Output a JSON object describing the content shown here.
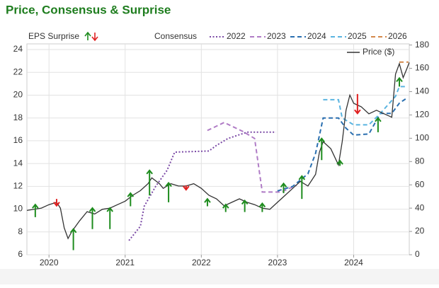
{
  "chart_data": {
    "type": "line",
    "title": "Price, Consensus & Surprise",
    "surprise_label": "EPS Surprise",
    "consensus_label": "Consensus",
    "xlim": [
      2019.71,
      2024.73
    ],
    "xticks": [
      2020,
      2021,
      2022,
      2023,
      2024
    ],
    "ylim": [
      6,
      24.5
    ],
    "yticks": [
      6,
      8,
      10,
      12,
      14,
      16,
      18,
      20,
      22,
      24
    ],
    "y2lim": [
      0,
      181
    ],
    "y2ticks": [
      0,
      20,
      40,
      60,
      80,
      100,
      120,
      140,
      160,
      180
    ],
    "grid": true,
    "series": [
      {
        "name": "2022",
        "color": "#7b4aa6",
        "line_style": "dotted",
        "x": [
          2021.05,
          2021.2,
          2021.25,
          2021.4,
          2021.55,
          2021.65,
          2022.1,
          2022.2,
          2022.35,
          2022.6,
          2022.98
        ],
        "values": [
          7.25,
          8.5,
          10.25,
          12,
          13.4,
          15,
          15.1,
          15.6,
          16.2,
          16.75,
          16.75
        ]
      },
      {
        "name": "2023",
        "color": "#b07cc6",
        "line_style": "dashed",
        "x": [
          2022.08,
          2022.3,
          2022.55,
          2022.7,
          2022.8,
          2023.05,
          2023.25
        ],
        "values": [
          16.9,
          17.6,
          16.8,
          16.2,
          11.5,
          11.5,
          12.1
        ]
      },
      {
        "name": "2024",
        "color": "#2a6fb0",
        "line_style": "dashed",
        "x": [
          2023.0,
          2023.2,
          2023.4,
          2023.5,
          2023.6,
          2023.8,
          2023.9,
          2024.0,
          2024.2,
          2024.35,
          2024.5,
          2024.6,
          2024.7
        ],
        "values": [
          11.6,
          12,
          13.1,
          14.9,
          18,
          18,
          17.1,
          16.5,
          16.6,
          18.4,
          18.4,
          19.3,
          19.75
        ]
      },
      {
        "name": "2025",
        "color": "#5ab4e0",
        "line_style": "dashed",
        "x": [
          2023.6,
          2023.8,
          2023.85,
          2024.0,
          2024.2,
          2024.35,
          2024.55,
          2024.6,
          2024.7
        ],
        "values": [
          19.6,
          19.6,
          18,
          17.4,
          17.4,
          18.4,
          19.9,
          20.75,
          20.75
        ]
      },
      {
        "name": "2026",
        "color": "#d4884a",
        "line_style": "dashed",
        "x": [
          2024.6,
          2024.72
        ],
        "values": [
          22.9,
          22.9
        ]
      },
      {
        "name": "Price ($)",
        "color": "#333333",
        "line_style": "solid",
        "axis": "y2",
        "x": [
          2019.71,
          2019.9,
          2020.0,
          2020.1,
          2020.15,
          2020.2,
          2020.25,
          2020.3,
          2020.4,
          2020.5,
          2020.6,
          2020.7,
          2020.8,
          2020.9,
          2021.0,
          2021.1,
          2021.2,
          2021.3,
          2021.35,
          2021.45,
          2021.5,
          2021.6,
          2021.7,
          2021.8,
          2021.9,
          2022.0,
          2022.1,
          2022.2,
          2022.3,
          2022.4,
          2022.5,
          2022.6,
          2022.7,
          2022.8,
          2022.9,
          2023.0,
          2023.1,
          2023.2,
          2023.3,
          2023.4,
          2023.5,
          2023.55,
          2023.6,
          2023.7,
          2023.8,
          2023.85,
          2023.9,
          2023.95,
          2024.0,
          2024.1,
          2024.2,
          2024.3,
          2024.4,
          2024.5,
          2024.55,
          2024.6,
          2024.65,
          2024.7,
          2024.73
        ],
        "values": [
          38,
          40,
          43,
          45,
          40,
          23,
          14,
          20,
          29,
          37,
          35,
          39,
          40,
          43,
          46,
          51,
          55,
          61,
          66,
          61,
          57,
          61,
          59,
          59,
          61,
          57,
          51,
          48,
          42,
          45,
          48,
          45,
          43,
          40,
          39,
          45,
          51,
          57,
          63,
          59,
          69,
          88,
          97,
          91,
          77,
          97,
          124,
          137,
          130,
          127,
          121,
          124,
          121,
          118,
          155,
          164,
          152,
          160,
          165
        ]
      }
    ],
    "surprises": [
      {
        "x": 2019.82,
        "values": [
          9.3,
          10.4
        ],
        "color": "#1e8c1e"
      },
      {
        "x": 2020.1,
        "values": [
          10.9,
          10.3
        ],
        "color": "#e02020"
      },
      {
        "x": 2020.32,
        "values": [
          6.4,
          8.25
        ],
        "color": "#1e8c1e"
      },
      {
        "x": 2020.57,
        "values": [
          8.25,
          10.1
        ],
        "color": "#1e8c1e"
      },
      {
        "x": 2020.8,
        "values": [
          8.25,
          10.1
        ],
        "color": "#1e8c1e"
      },
      {
        "x": 2021.07,
        "values": [
          10.25,
          11.4
        ],
        "color": "#1e8c1e"
      },
      {
        "x": 2021.32,
        "values": [
          11.2,
          13.4
        ],
        "color": "#1e8c1e"
      },
      {
        "x": 2021.57,
        "values": [
          10.6,
          12.3
        ],
        "color": "#1e8c1e"
      },
      {
        "x": 2021.8,
        "values": [
          12.1,
          11.7
        ],
        "color": "#e02020"
      },
      {
        "x": 2022.08,
        "values": [
          10.25,
          10.9
        ],
        "color": "#1e8c1e"
      },
      {
        "x": 2022.32,
        "values": [
          9.75,
          10.4
        ],
        "color": "#1e8c1e"
      },
      {
        "x": 2022.57,
        "values": [
          9.75,
          10.75
        ],
        "color": "#1e8c1e"
      },
      {
        "x": 2022.8,
        "values": [
          9.75,
          10.5
        ],
        "color": "#1e8c1e"
      },
      {
        "x": 2023.08,
        "values": [
          11.4,
          12.25
        ],
        "color": "#1e8c1e"
      },
      {
        "x": 2023.32,
        "values": [
          10.9,
          12.9
        ],
        "color": "#1e8c1e"
      },
      {
        "x": 2023.58,
        "values": [
          14.3,
          16.2
        ],
        "color": "#1e8c1e"
      },
      {
        "x": 2023.82,
        "values": [
          13.8,
          14.25
        ],
        "color": "#1e8c1e"
      },
      {
        "x": 2024.05,
        "values": [
          20.1,
          18.4
        ],
        "color": "#e02020"
      },
      {
        "x": 2024.32,
        "values": [
          16.75,
          18
        ],
        "color": "#1e8c1e"
      },
      {
        "x": 2024.6,
        "values": [
          20.75,
          21.5
        ],
        "color": "#1e8c1e"
      }
    ]
  }
}
